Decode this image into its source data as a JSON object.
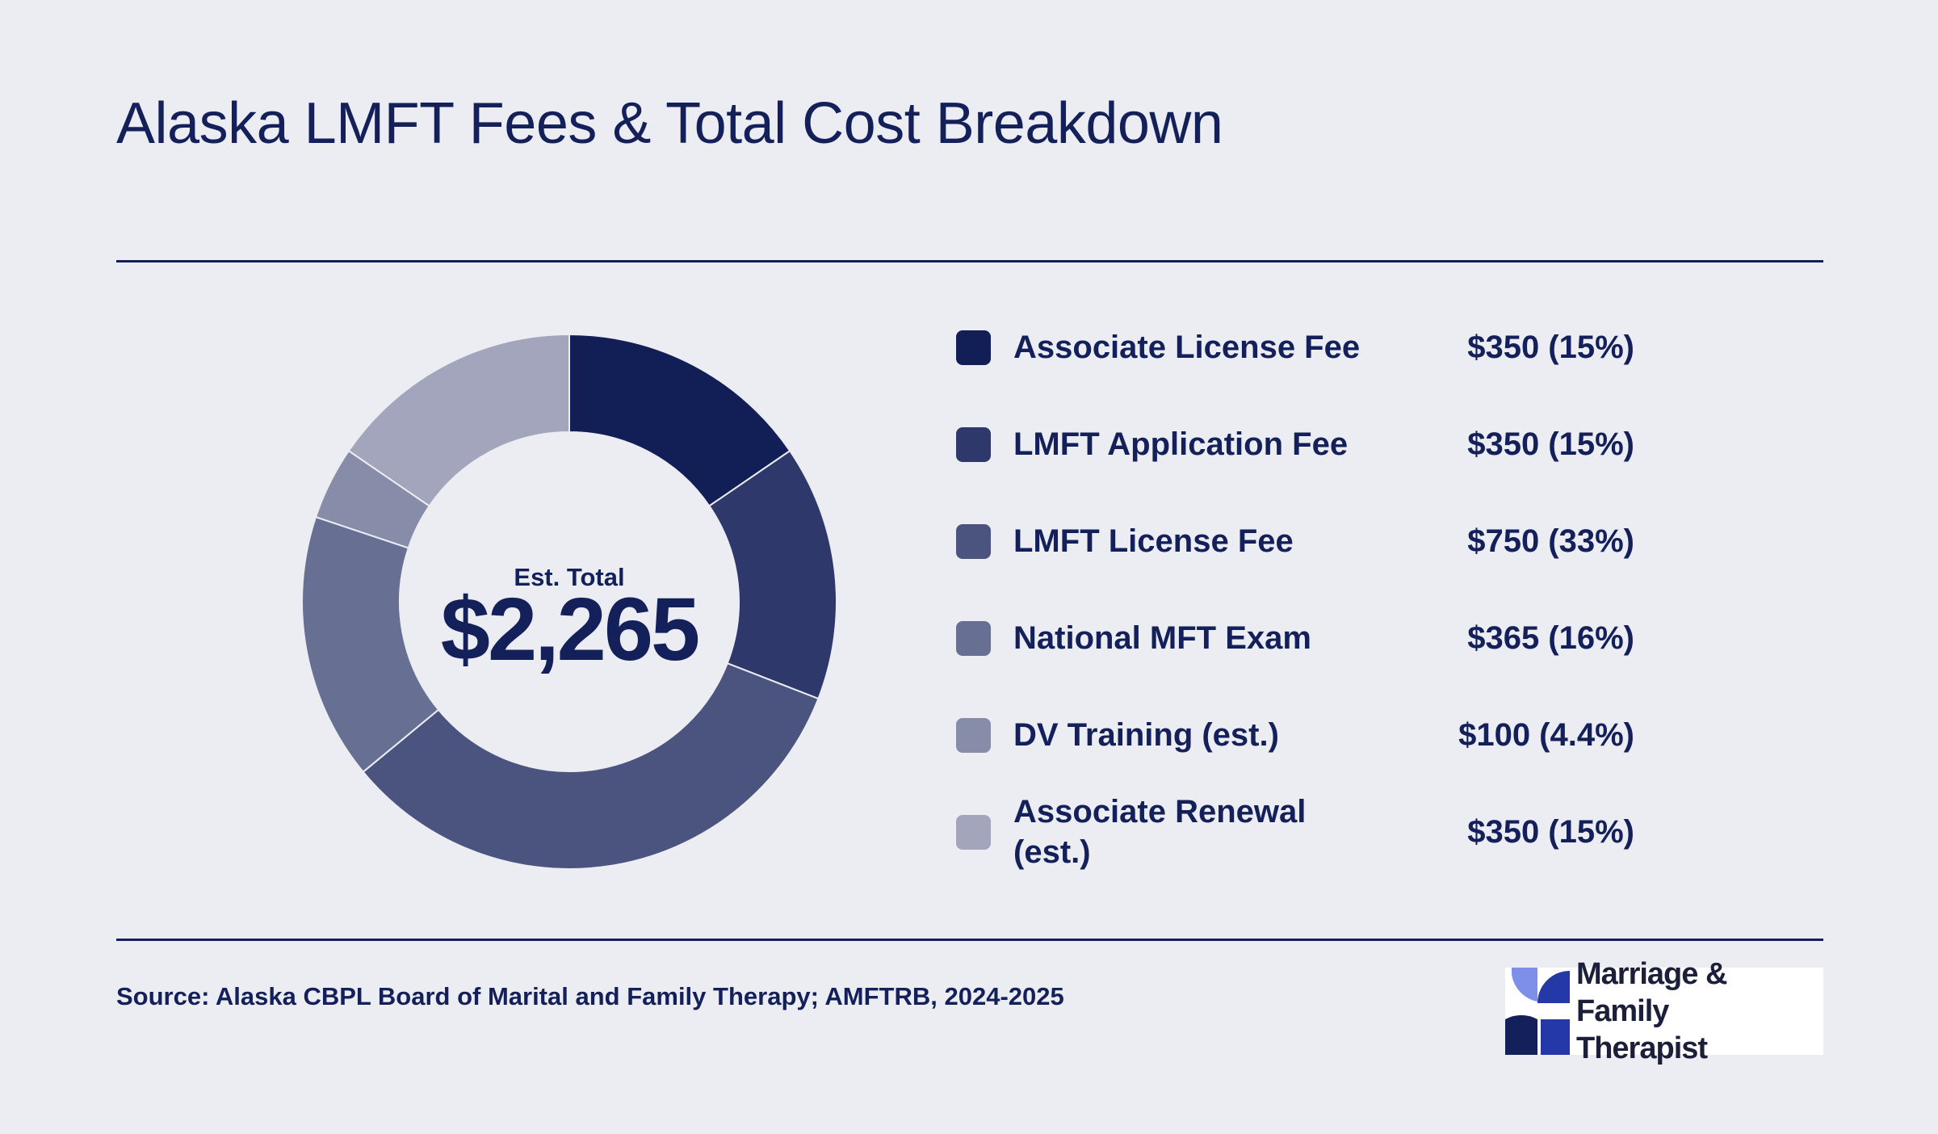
{
  "title": "Alaska LMFT Fees & Total Cost Breakdown",
  "center": {
    "label": "Est. Total",
    "value": "$2,265"
  },
  "legend": [
    {
      "label": "Associate License Fee",
      "value": "$350 (15%)",
      "color": "#121f56"
    },
    {
      "label": "LMFT Application Fee",
      "value": "$350 (15%)",
      "color": "#2e386b"
    },
    {
      "label": "LMFT License Fee",
      "value": "$750 (33%)",
      "color": "#4b547e"
    },
    {
      "label": "National MFT Exam",
      "value": "$365 (16%)",
      "color": "#676f92"
    },
    {
      "label": "DV Training (est.)",
      "value": "$100 (4.4%)",
      "color": "#878ca8"
    },
    {
      "label": "Associate Renewal (est.)",
      "value": "$350 (15%)",
      "color": "#a2a5bb"
    }
  ],
  "source": "Source: Alaska CBPL Board of Marital and Family Therapy; AMFTRB, 2024-2025",
  "logo": {
    "line1": "Marriage & Family",
    "line2": "Therapist"
  },
  "chart_data": {
    "type": "pie",
    "style": "donut",
    "categories": [
      "Associate License Fee",
      "LMFT Application Fee",
      "LMFT License Fee",
      "National MFT Exam",
      "DV Training (est.)",
      "Associate Renewal (est.)"
    ],
    "values": [
      350,
      350,
      750,
      365,
      100,
      350
    ],
    "percent_labels": [
      "15%",
      "15%",
      "33%",
      "16%",
      "4.4%",
      "15%"
    ],
    "total": 2265,
    "colors": [
      "#121f56",
      "#2e386b",
      "#4b547e",
      "#676f92",
      "#878ca8",
      "#a2a5bb"
    ],
    "title": "Alaska LMFT Fees & Total Cost Breakdown",
    "legend_position": "right"
  }
}
